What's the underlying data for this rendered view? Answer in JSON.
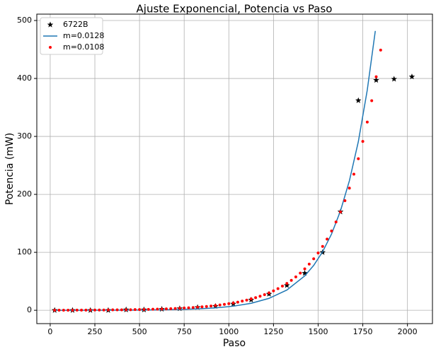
{
  "chart_data": {
    "type": "scatter",
    "title": "Ajuste Exponencial, Potencia vs Paso",
    "xlabel": "Paso",
    "ylabel": "Potencia (mW)",
    "xlim": [
      -75,
      2140
    ],
    "ylim": [
      -23,
      511
    ],
    "xticks": [
      0,
      250,
      500,
      750,
      1000,
      1250,
      1500,
      1750,
      2000
    ],
    "yticks": [
      0,
      100,
      200,
      300,
      400,
      500
    ],
    "grid": true,
    "legend": "upper left",
    "series": [
      {
        "name": "6722B",
        "style": "star",
        "color": "#000000",
        "x": [
          25,
          125,
          225,
          325,
          425,
          525,
          625,
          725,
          825,
          925,
          1025,
          1125,
          1225,
          1325,
          1425,
          1525,
          1625,
          1725,
          1825,
          1925,
          2025
        ],
        "values": [
          0,
          0,
          0,
          0,
          1,
          1,
          2,
          3,
          5,
          7,
          11,
          18,
          28,
          43,
          64,
          100,
          170,
          362,
          397,
          399,
          403
        ]
      },
      {
        "name": "m=0.0128",
        "style": "line",
        "color": "#1f77b4",
        "x": [
          25,
          125,
          225,
          325,
          425,
          525,
          625,
          725,
          825,
          925,
          1025,
          1125,
          1225,
          1325,
          1425,
          1475,
          1525,
          1575,
          1625,
          1675,
          1725,
          1775,
          1820
        ],
        "values": [
          0.04,
          0.06,
          0.1,
          0.17,
          0.3,
          0.5,
          0.85,
          1.45,
          2.5,
          4.2,
          7.1,
          12.1,
          20.6,
          35,
          59.4,
          77.4,
          101,
          131.6,
          171.5,
          223.5,
          291,
          380,
          482
        ]
      },
      {
        "name": "m=0.0108",
        "style": "dot",
        "color": "#ff0000",
        "x": [
          25,
          50,
          75,
          100,
          125,
          150,
          175,
          200,
          225,
          250,
          275,
          300,
          325,
          350,
          375,
          400,
          425,
          450,
          475,
          500,
          525,
          550,
          575,
          600,
          625,
          650,
          675,
          700,
          725,
          750,
          775,
          800,
          825,
          850,
          875,
          900,
          925,
          950,
          975,
          1000,
          1025,
          1050,
          1075,
          1100,
          1125,
          1150,
          1175,
          1200,
          1225,
          1250,
          1275,
          1300,
          1325,
          1350,
          1375,
          1400,
          1425,
          1450,
          1475,
          1500,
          1525,
          1550,
          1575,
          1600,
          1625,
          1650,
          1675,
          1700,
          1725,
          1750,
          1775,
          1800,
          1825,
          1850
        ],
        "values": [
          0.1,
          0.2,
          0.2,
          0.2,
          0.2,
          0.3,
          0.3,
          0.3,
          0.4,
          0.4,
          0.5,
          0.5,
          0.6,
          0.7,
          0.7,
          0.8,
          0.9,
          1.0,
          1.2,
          1.3,
          1.4,
          1.6,
          1.8,
          2.0,
          2.2,
          2.5,
          2.8,
          3.1,
          3.5,
          3.9,
          4.3,
          4.8,
          5.3,
          6.0,
          6.6,
          7.4,
          8.2,
          9.2,
          10.2,
          11.4,
          12.7,
          14.1,
          15.8,
          17.6,
          19.6,
          21.8,
          24.3,
          27.0,
          30.1,
          33.6,
          37.4,
          41.7,
          46.4,
          51.7,
          57.6,
          64.2,
          71.5,
          79.7,
          88.8,
          98.9,
          110.2,
          122.8,
          136.8,
          152.4,
          169.8,
          189.2,
          210.8,
          234.8,
          261.6,
          291.4,
          324.7,
          361.7,
          403,
          449
        ]
      }
    ]
  }
}
